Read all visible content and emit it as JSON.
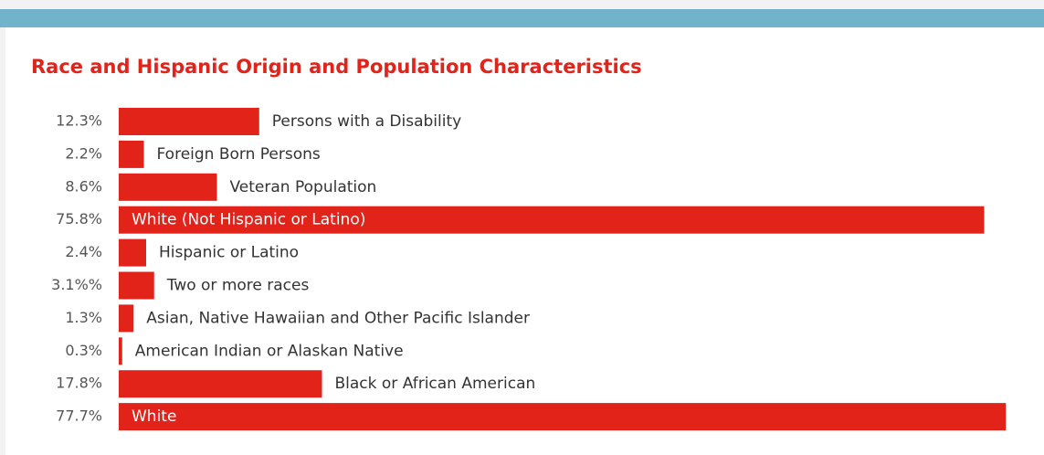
{
  "chart_data": {
    "type": "hbar",
    "title": "Race and Hispanic Origin and Population Characteristics",
    "categories": [
      "Persons with a Disability",
      "Foreign Born Persons",
      "Veteran Population",
      "White (Not Hispanic or Latino)",
      "Hispanic or Latino",
      "Two or more races",
      "Asian, Native Hawaiian and Other Pacific Islander",
      "American Indian or Alaskan Native",
      "Black or African American",
      "White"
    ],
    "values": [
      12.3,
      2.2,
      8.6,
      75.8,
      2.4,
      3.1,
      1.3,
      0.3,
      17.8,
      77.7
    ],
    "value_labels": [
      "12.3%",
      "2.2%",
      "8.6%",
      "75.8%",
      "2.4%",
      "3.1%%",
      "1.3%",
      "0.3%",
      "17.8%",
      "77.7%"
    ],
    "color": "#e2231a"
  }
}
